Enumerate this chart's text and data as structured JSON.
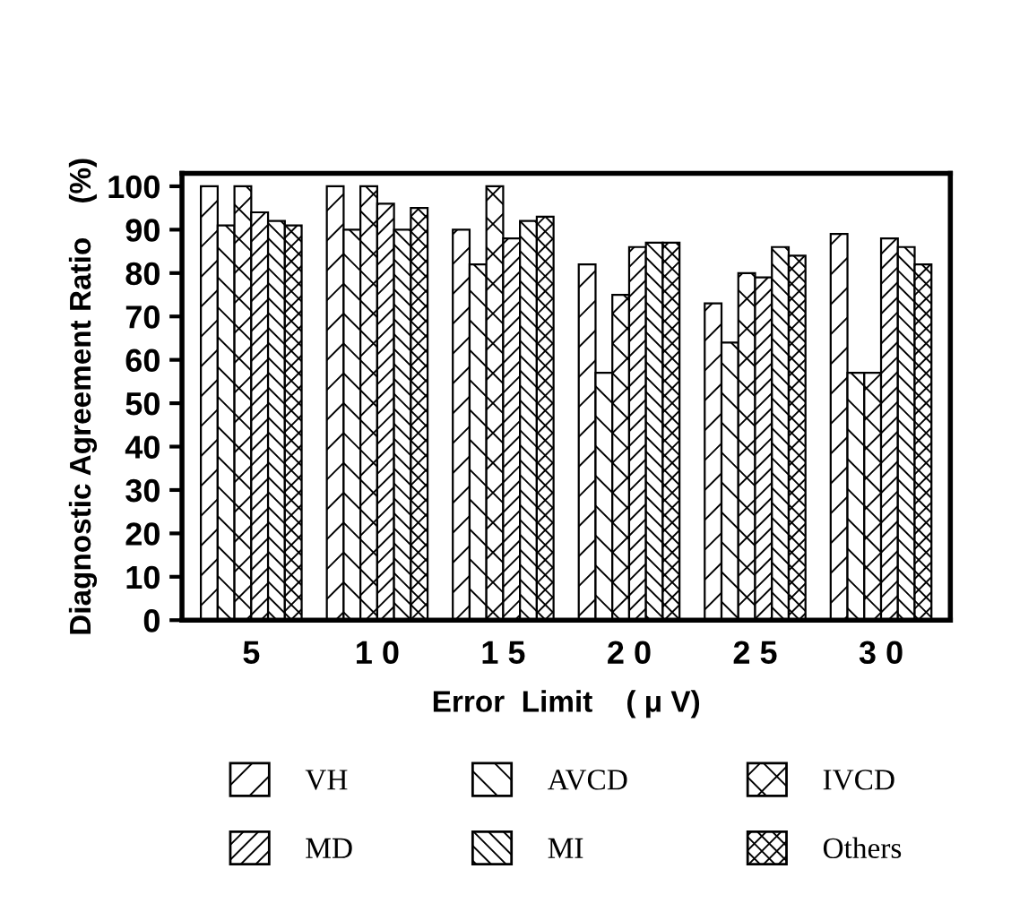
{
  "chart_data": {
    "type": "bar",
    "xlabel": "Error  Limit    ( μ V)",
    "ylabel": "Diagnostic Agreement Ratio    (%)",
    "categories": [
      "5",
      "1 0",
      "1 5",
      "2 0",
      "2 5",
      "3 0"
    ],
    "series": [
      {
        "name": "VH",
        "color": "#000000",
        "values": [
          100,
          100,
          90,
          82,
          73,
          89
        ]
      },
      {
        "name": "AVCD",
        "color": "#000000",
        "values": [
          91,
          90,
          82,
          57,
          64,
          57
        ]
      },
      {
        "name": "IVCD",
        "color": "#000000",
        "values": [
          100,
          100,
          100,
          75,
          80,
          57
        ]
      },
      {
        "name": "MD",
        "color": "#000000",
        "values": [
          94,
          96,
          88,
          86,
          79,
          88
        ]
      },
      {
        "name": "MI",
        "color": "#000000",
        "values": [
          92,
          90,
          92,
          87,
          86,
          86
        ]
      },
      {
        "name": "Others",
        "color": "#000000",
        "values": [
          91,
          95,
          93,
          87,
          84,
          82
        ]
      }
    ],
    "ylim": [
      0,
      103
    ],
    "yticks": [
      0,
      10,
      20,
      30,
      40,
      50,
      60,
      70,
      80,
      90,
      100
    ],
    "grid": false,
    "legend": "bottom"
  }
}
